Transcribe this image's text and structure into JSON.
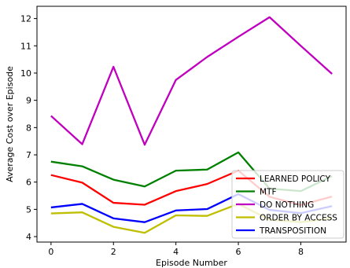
{
  "chart_data": {
    "type": "line",
    "title": "",
    "xlabel": "Episode Number",
    "ylabel": "Average Cost over Episode",
    "x": [
      0,
      1,
      2,
      3,
      4,
      5,
      6,
      7,
      8,
      9
    ],
    "xlim": [
      -0.45,
      9.45
    ],
    "ylim": [
      3.8,
      12.45
    ],
    "xticks": [
      0,
      2,
      4,
      6,
      8
    ],
    "yticks": [
      4,
      5,
      6,
      7,
      8,
      9,
      10,
      11,
      12
    ],
    "grid": false,
    "legend_position": "lower-right",
    "series": [
      {
        "name": "LEARNED POLICY",
        "color": "#ff0000",
        "values": [
          6.26,
          5.98,
          5.24,
          5.17,
          5.67,
          5.93,
          6.42,
          5.46,
          5.16,
          5.47
        ]
      },
      {
        "name": "MTF",
        "color": "#008000",
        "values": [
          6.75,
          6.58,
          6.09,
          5.84,
          6.42,
          6.46,
          7.09,
          5.76,
          5.67,
          6.22
        ]
      },
      {
        "name": "DO NOTHING",
        "color": "#bf00bf",
        "values": [
          8.43,
          7.39,
          10.23,
          7.37,
          9.75,
          10.59,
          11.33,
          12.05,
          11.0,
          9.97
        ]
      },
      {
        "name": "ORDER BY ACCESS",
        "color": "#bfbf00",
        "values": [
          4.85,
          4.89,
          4.36,
          4.14,
          4.78,
          4.76,
          5.2,
          4.62,
          4.53,
          4.68
        ]
      },
      {
        "name": "TRANSPOSITION",
        "color": "#0000ff",
        "values": [
          5.07,
          5.2,
          4.67,
          4.53,
          4.96,
          5.01,
          5.56,
          4.98,
          4.86,
          5.12
        ]
      }
    ]
  }
}
